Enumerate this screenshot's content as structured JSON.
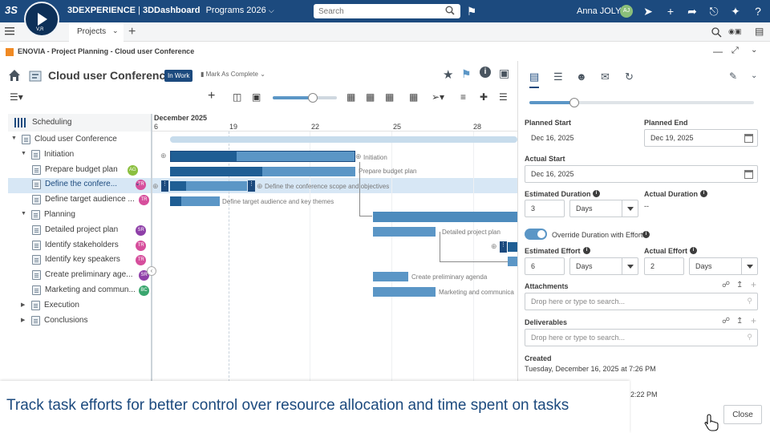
{
  "topbar": {
    "brand_strong": "3DEXPERIENCE",
    "brand_sep": " | ",
    "brand_dash": "3DDashboard",
    "brand_space": "Programs 2026",
    "search_placeholder": "Search",
    "user_name": "Anna JOLY",
    "user_initials": "AJ",
    "compass_label": "V,R"
  },
  "tabs": {
    "active": "Projects"
  },
  "app": {
    "title": "ENOVIA - Project Planning - Cloud user Conference"
  },
  "project": {
    "title": "Cloud user Conference",
    "status": "In Work",
    "mark_complete": "Mark As Complete"
  },
  "tree": {
    "header": "Scheduling",
    "rows": [
      {
        "label": "Cloud user Conference",
        "level": 0,
        "expanded": true
      },
      {
        "label": "Initiation",
        "level": 1,
        "expanded": true
      },
      {
        "label": "Prepare budget plan",
        "level": 2,
        "avatar": "AG",
        "avatar_color": "#8bbf3f"
      },
      {
        "label": "Define the confere...",
        "level": 2,
        "avatar": "TR",
        "avatar_color": "#d64e9c",
        "selected": true
      },
      {
        "label": "Define target audience ...",
        "level": 2,
        "avatar": "TR",
        "avatar_color": "#d64e9c"
      },
      {
        "label": "Planning",
        "level": 1,
        "expanded": true
      },
      {
        "label": "Detailed project plan",
        "level": 2,
        "avatar": "SR",
        "avatar_color": "#8e3fa8"
      },
      {
        "label": "Identify stakeholders",
        "level": 2,
        "avatar": "TR",
        "avatar_color": "#d64e9c"
      },
      {
        "label": "Identify key speakers",
        "level": 2,
        "avatar": "TR",
        "avatar_color": "#d64e9c"
      },
      {
        "label": "Create preliminary age...",
        "level": 2,
        "avatar": "SR",
        "avatar_color": "#8e3fa8"
      },
      {
        "label": "Marketing and commun...",
        "level": 2,
        "avatar": "BC",
        "avatar_color": "#3aa66e"
      },
      {
        "label": "Execution",
        "level": 1,
        "expanded": false
      },
      {
        "label": "Conclusions",
        "level": 1,
        "expanded": false
      }
    ]
  },
  "gantt": {
    "month": "December 2025",
    "days": [
      "6",
      "19",
      "22",
      "25",
      "28"
    ],
    "bar_labels": {
      "initiation": "Initiation",
      "budget": "Prepare budget plan",
      "scope": "Define the conference scope and objectives",
      "audience": "Define target audience and key themes",
      "detailed": "Detailed project plan",
      "agenda": "Create preliminary agenda",
      "marketing": "Marketing and communica"
    }
  },
  "details": {
    "planned_start_label": "Planned Start",
    "planned_start": "Dec 16, 2025",
    "planned_end_label": "Planned End",
    "planned_end": "Dec 19, 2025",
    "actual_start_label": "Actual Start",
    "actual_start": "Dec 16, 2025",
    "est_duration_label": "Estimated Duration",
    "est_duration": "3",
    "est_duration_unit": "Days",
    "actual_duration_label": "Actual Duration",
    "actual_duration": "--",
    "override_label": "Override Duration with Effort",
    "override_on": true,
    "est_effort_label": "Estimated Effort",
    "est_effort": "6",
    "est_effort_unit": "Days",
    "actual_effort_label": "Actual Effort",
    "actual_effort": "2",
    "actual_effort_unit": "Days",
    "attachments_label": "Attachments",
    "attachments_placeholder": "Drop here or type to search...",
    "deliverables_label": "Deliverables",
    "deliverables_placeholder": "Drop here or type to search...",
    "created_label": "Created",
    "created_value": "Tuesday, December 16, 2025 at 7:26 PM",
    "modified_partial": "2:22 PM"
  },
  "caption": {
    "text": "Track task efforts for better control over resource allocation and time spent on tasks",
    "close": "Close"
  }
}
